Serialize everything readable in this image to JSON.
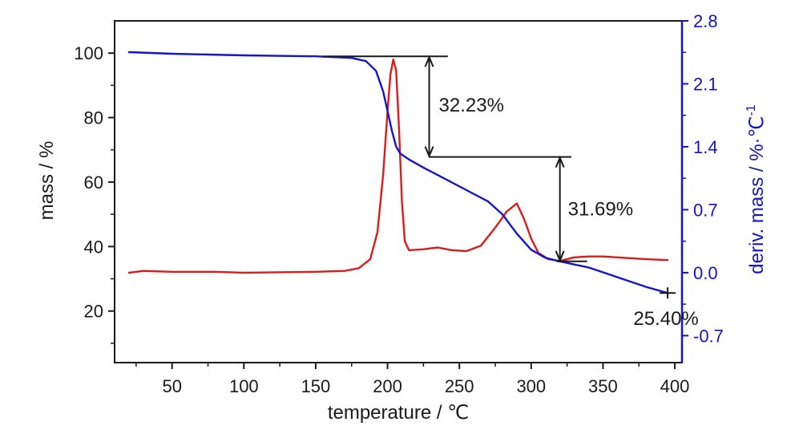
{
  "chart_data": {
    "type": "line",
    "xlabel": "temperature / ℃",
    "ylabel": "mass / %",
    "y2label_main": "deriv. mass / %·℃",
    "y2label_sup": "-1",
    "xlim": [
      10,
      405
    ],
    "ylim": [
      4,
      110
    ],
    "y2lim": [
      -1.0,
      2.8
    ],
    "x_ticks": [
      50,
      100,
      150,
      200,
      250,
      300,
      350,
      400
    ],
    "y_ticks": [
      20,
      40,
      60,
      80,
      100
    ],
    "y2_ticks": [
      "2.8",
      "2.1",
      "1.4",
      "0.7",
      "0.0",
      "-0.7"
    ],
    "series": [
      {
        "axis": "left",
        "color": "#1414d2",
        "values": [
          [
            20,
            100.3
          ],
          [
            50,
            99.8
          ],
          [
            100,
            99.3
          ],
          [
            150,
            99.0
          ],
          [
            175,
            98.5
          ],
          [
            185,
            97.5
          ],
          [
            192,
            94.5
          ],
          [
            197,
            88
          ],
          [
            200,
            82
          ],
          [
            203,
            76
          ],
          [
            206,
            71
          ],
          [
            209,
            68.8
          ],
          [
            215,
            67
          ],
          [
            225,
            64.5
          ],
          [
            240,
            61
          ],
          [
            255,
            57.5
          ],
          [
            270,
            54
          ],
          [
            280,
            50
          ],
          [
            290,
            44
          ],
          [
            300,
            39
          ],
          [
            310,
            36.5
          ],
          [
            320,
            35.4
          ],
          [
            340,
            33.5
          ],
          [
            360,
            30.5
          ],
          [
            380,
            27.5
          ],
          [
            395,
            25.6
          ]
        ]
      },
      {
        "axis": "right",
        "color": "#dc1c1c",
        "values": [
          [
            20,
            0.0
          ],
          [
            30,
            0.02
          ],
          [
            50,
            0.01
          ],
          [
            80,
            0.01
          ],
          [
            100,
            0.0
          ],
          [
            150,
            0.01
          ],
          [
            170,
            0.02
          ],
          [
            180,
            0.05
          ],
          [
            188,
            0.15
          ],
          [
            193,
            0.45
          ],
          [
            197,
            1.1
          ],
          [
            200,
            1.8
          ],
          [
            202,
            2.2
          ],
          [
            204,
            2.37
          ],
          [
            206,
            2.25
          ],
          [
            208,
            1.6
          ],
          [
            210,
            0.8
          ],
          [
            212,
            0.35
          ],
          [
            215,
            0.25
          ],
          [
            225,
            0.26
          ],
          [
            235,
            0.28
          ],
          [
            245,
            0.25
          ],
          [
            255,
            0.24
          ],
          [
            265,
            0.3
          ],
          [
            275,
            0.5
          ],
          [
            283,
            0.68
          ],
          [
            290,
            0.77
          ],
          [
            295,
            0.6
          ],
          [
            300,
            0.38
          ],
          [
            305,
            0.22
          ],
          [
            312,
            0.15
          ],
          [
            320,
            0.13
          ],
          [
            330,
            0.17
          ],
          [
            340,
            0.18
          ],
          [
            350,
            0.18
          ],
          [
            360,
            0.17
          ],
          [
            380,
            0.15
          ],
          [
            395,
            0.14
          ]
        ]
      }
    ],
    "annotations": [
      {
        "text": "32.23%",
        "x_from": 155,
        "x_to": 242,
        "y_top": 99.0,
        "y_bottom": 67.8,
        "arrow_x": 229
      },
      {
        "text": "31.69%",
        "x_from": 229,
        "x_to": 328,
        "y_top": 67.8,
        "y_bottom": 35.4,
        "arrow_x": 320
      },
      {
        "text": "25.40%",
        "x": 395,
        "y": 25.6
      }
    ]
  }
}
